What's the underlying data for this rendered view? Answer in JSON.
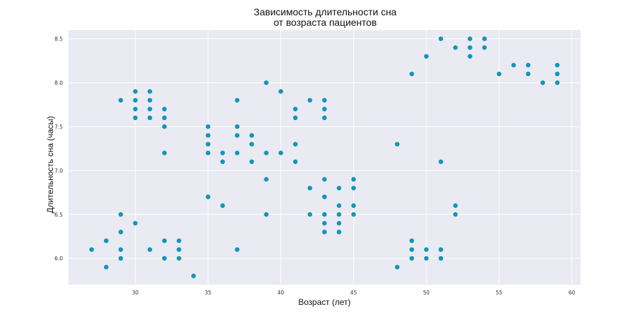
{
  "chart_data": {
    "type": "scatter",
    "title_line1": "Зависимость длительности сна",
    "title_line2": "от возраста пациентов",
    "xlabel": "Возраст (лет)",
    "ylabel": "Длительность сна (часы)",
    "xlim": [
      25.4,
      60.6
    ],
    "ylim": [
      5.7,
      8.6
    ],
    "xticks": [
      30,
      35,
      40,
      45,
      50,
      55,
      60
    ],
    "yticks": [
      6.0,
      6.5,
      7.0,
      7.5,
      8.0,
      8.5
    ],
    "xtick_labels": [
      "30",
      "35",
      "40",
      "45",
      "50",
      "55",
      "60"
    ],
    "ytick_labels": [
      "6.0",
      "6.5",
      "7.0",
      "7.5",
      "8.0",
      "8.5"
    ],
    "grid": true,
    "marker_color": "#1196b8",
    "background_color": "#eaeaf2",
    "points": [
      [
        27,
        6.1
      ],
      [
        28,
        6.2
      ],
      [
        28,
        5.9
      ],
      [
        29,
        7.8
      ],
      [
        29,
        6.5
      ],
      [
        29,
        6.3
      ],
      [
        29,
        6.1
      ],
      [
        29,
        6.0
      ],
      [
        30,
        7.9
      ],
      [
        30,
        7.8
      ],
      [
        30,
        7.7
      ],
      [
        30,
        7.6
      ],
      [
        30,
        6.4
      ],
      [
        31,
        7.9
      ],
      [
        31,
        7.8
      ],
      [
        31,
        7.7
      ],
      [
        31,
        7.6
      ],
      [
        31,
        6.1
      ],
      [
        32,
        7.7
      ],
      [
        32,
        7.6
      ],
      [
        32,
        7.5
      ],
      [
        32,
        7.2
      ],
      [
        32,
        6.2
      ],
      [
        32,
        6.0
      ],
      [
        33,
        6.2
      ],
      [
        33,
        6.1
      ],
      [
        33,
        6.0
      ],
      [
        34,
        5.8
      ],
      [
        35,
        7.5
      ],
      [
        35,
        7.4
      ],
      [
        35,
        7.3
      ],
      [
        35,
        7.2
      ],
      [
        35,
        6.7
      ],
      [
        36,
        7.2
      ],
      [
        36,
        7.1
      ],
      [
        36,
        6.6
      ],
      [
        37,
        7.8
      ],
      [
        37,
        7.5
      ],
      [
        37,
        7.4
      ],
      [
        37,
        7.2
      ],
      [
        37,
        6.1
      ],
      [
        38,
        7.4
      ],
      [
        38,
        7.3
      ],
      [
        38,
        7.1
      ],
      [
        39,
        8.0
      ],
      [
        39,
        7.2
      ],
      [
        39,
        6.9
      ],
      [
        39,
        6.5
      ],
      [
        40,
        7.9
      ],
      [
        40,
        7.2
      ],
      [
        41,
        7.7
      ],
      [
        41,
        7.6
      ],
      [
        41,
        7.3
      ],
      [
        41,
        7.1
      ],
      [
        42,
        7.8
      ],
      [
        42,
        6.8
      ],
      [
        42,
        6.5
      ],
      [
        43,
        7.8
      ],
      [
        43,
        7.7
      ],
      [
        43,
        7.6
      ],
      [
        43,
        6.9
      ],
      [
        43,
        6.7
      ],
      [
        43,
        6.5
      ],
      [
        43,
        6.4
      ],
      [
        43,
        6.3
      ],
      [
        44,
        6.8
      ],
      [
        44,
        6.6
      ],
      [
        44,
        6.5
      ],
      [
        44,
        6.4
      ],
      [
        44,
        6.3
      ],
      [
        45,
        6.9
      ],
      [
        45,
        6.8
      ],
      [
        45,
        6.6
      ],
      [
        45,
        6.5
      ],
      [
        48,
        7.3
      ],
      [
        48,
        5.9
      ],
      [
        49,
        8.1
      ],
      [
        49,
        6.2
      ],
      [
        49,
        6.1
      ],
      [
        49,
        6.0
      ],
      [
        50,
        8.3
      ],
      [
        50,
        6.1
      ],
      [
        50,
        6.0
      ],
      [
        51,
        8.5
      ],
      [
        51,
        7.1
      ],
      [
        51,
        6.1
      ],
      [
        51,
        6.0
      ],
      [
        52,
        8.4
      ],
      [
        52,
        6.6
      ],
      [
        52,
        6.5
      ],
      [
        53,
        8.5
      ],
      [
        53,
        8.4
      ],
      [
        53,
        8.3
      ],
      [
        54,
        8.5
      ],
      [
        54,
        8.4
      ],
      [
        55,
        8.1
      ],
      [
        56,
        8.2
      ],
      [
        57,
        8.2
      ],
      [
        57,
        8.1
      ],
      [
        58,
        8.0
      ],
      [
        59,
        8.2
      ],
      [
        59,
        8.1
      ],
      [
        59,
        8.0
      ]
    ]
  }
}
